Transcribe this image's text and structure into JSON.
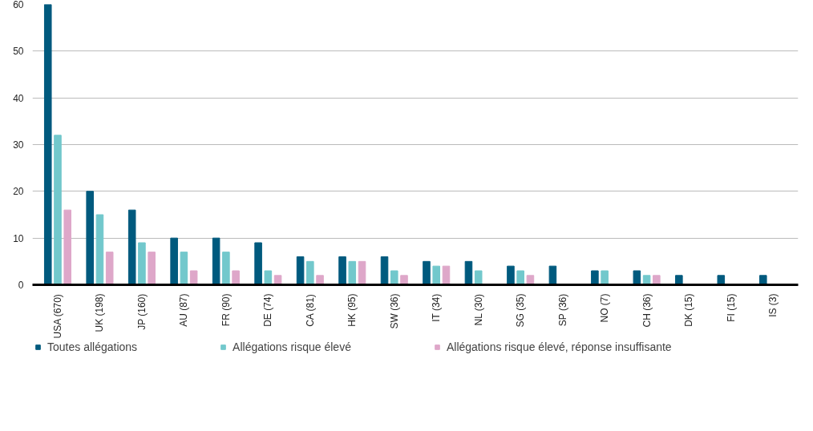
{
  "chart_data": {
    "type": "bar",
    "categories": [
      "USA (670)",
      "UK (198)",
      "JP (160)",
      "AU (87)",
      "FR (90)",
      "DE (74)",
      "CA (81)",
      "HK (95)",
      "SW (36)",
      "IT (34)",
      "NL (30)",
      "SG (35)",
      "SP (36)",
      "NO (7)",
      "CH (36)",
      "DK (15)",
      "FI (15)",
      "IS (3)"
    ],
    "series": [
      {
        "name": "Toutes allégations",
        "color": "#005a7e",
        "values": [
          60,
          20,
          16,
          10,
          10,
          9,
          6,
          6,
          6,
          5,
          5,
          4,
          4,
          3,
          3,
          2,
          2,
          2
        ]
      },
      {
        "name": "Allégations risque élevé",
        "color": "#72c8cc",
        "values": [
          32,
          15,
          9,
          7,
          7,
          3,
          5,
          5,
          3,
          4,
          3,
          3,
          0,
          3,
          2,
          0,
          0,
          0
        ]
      },
      {
        "name": "Allégations risque élevé, réponse insuffisante",
        "color": "#dea7c9",
        "values": [
          16,
          7,
          7,
          3,
          3,
          2,
          2,
          5,
          2,
          4,
          0,
          2,
          0,
          0,
          2,
          0,
          0,
          0
        ]
      }
    ],
    "ylim": [
      0,
      60
    ],
    "yticks": [
      0,
      10,
      20,
      30,
      40,
      50,
      60
    ],
    "grid": "y",
    "legend": "bottom"
  }
}
